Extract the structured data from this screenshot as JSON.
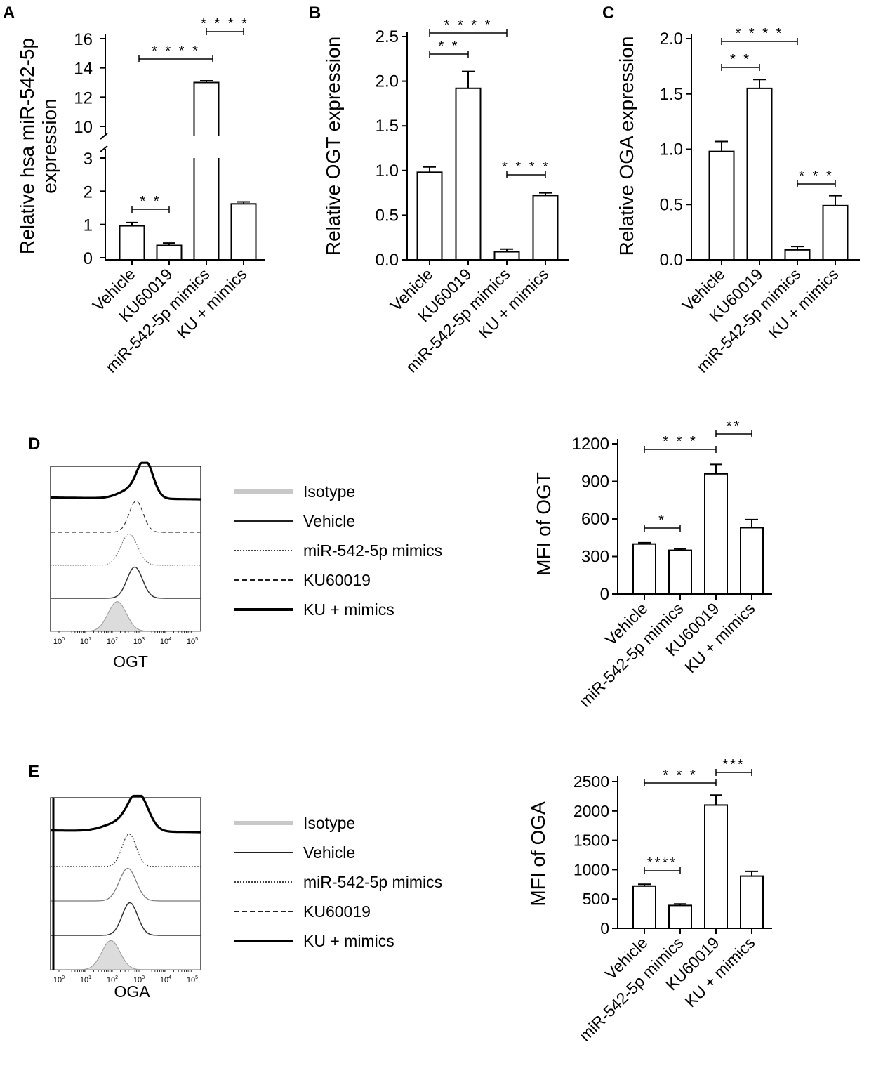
{
  "panels": [
    {
      "id": "A",
      "chart_data": {
        "type": "bar",
        "ylabel_lines": [
          "Relative hsa miR-542-5p",
          "expression"
        ],
        "categories": [
          "Vehicle",
          "KU60019",
          "miR-542-5p mimics",
          "KU + mimics"
        ],
        "values": [
          0.96,
          0.37,
          13.0,
          1.62
        ],
        "errors": [
          0.1,
          0.07,
          0.12,
          0.06
        ],
        "y_axis": "broken",
        "lower_range": [
          0,
          3
        ],
        "upper_range": [
          9,
          16
        ],
        "lower_ticks": [
          "0",
          "1",
          "2",
          "3"
        ],
        "upper_ticks": [
          "10",
          "12",
          "14",
          "16"
        ],
        "significance": [
          {
            "from": 0,
            "to": 1,
            "label": "* *"
          },
          {
            "from": 0,
            "to": 2,
            "label": "* * * *"
          },
          {
            "from": 2,
            "to": 3,
            "label": "* * * *"
          }
        ]
      }
    },
    {
      "id": "B",
      "chart_data": {
        "type": "bar",
        "ylabel": "Relative OGT expression",
        "categories": [
          "Vehicle",
          "KU60019",
          "miR-542-5p mimics",
          "KU + mimics"
        ],
        "values": [
          0.98,
          1.92,
          0.09,
          0.72
        ],
        "errors": [
          0.06,
          0.19,
          0.03,
          0.03
        ],
        "ylim": [
          0,
          2.5
        ],
        "yticks": [
          "0.0",
          "0.5",
          "1.0",
          "1.5",
          "2.0",
          "2.5"
        ],
        "significance": [
          {
            "from": 0,
            "to": 1,
            "label": "* *"
          },
          {
            "from": 0,
            "to": 2,
            "label": "* * * *"
          },
          {
            "from": 2,
            "to": 3,
            "label": "* * * *"
          }
        ]
      }
    },
    {
      "id": "C",
      "chart_data": {
        "type": "bar",
        "ylabel": "Relative OGA expression",
        "categories": [
          "Vehicle",
          "KU60019",
          "miR-542-5p mimics",
          "KU + mimics"
        ],
        "values": [
          0.98,
          1.55,
          0.09,
          0.49
        ],
        "errors": [
          0.09,
          0.08,
          0.03,
          0.09
        ],
        "ylim": [
          0,
          2.0
        ],
        "yticks": [
          "0.0",
          "0.5",
          "1.0",
          "1.5",
          "2.0"
        ],
        "significance": [
          {
            "from": 0,
            "to": 1,
            "label": "* *"
          },
          {
            "from": 0,
            "to": 2,
            "label": "* * * *"
          },
          {
            "from": 2,
            "to": 3,
            "label": "* * *"
          }
        ]
      }
    },
    {
      "id": "D",
      "histogram_xlabel": "OGT",
      "histogram_ticks": [
        "10",
        "10",
        "10",
        "10",
        "10",
        "10"
      ],
      "histogram_tick_exponents": [
        "0",
        "1",
        "2",
        "3",
        "4",
        "5"
      ],
      "legend": [
        "Isotype",
        "Vehicle",
        "miR-542-5p mimics",
        "KU60019",
        "KU + mimics"
      ],
      "chart_data": {
        "type": "bar",
        "ylabel": "MFI of OGT",
        "categories": [
          "Vehicle",
          "miR-542-5p mimics",
          "KU60019",
          "KU + mimics"
        ],
        "values": [
          400,
          350,
          960,
          530
        ],
        "errors": [
          10,
          12,
          75,
          65
        ],
        "ylim": [
          0,
          1200
        ],
        "yticks": [
          "0",
          "300",
          "600",
          "900",
          "1200"
        ],
        "significance": [
          {
            "from": 0,
            "to": 1,
            "label": "*"
          },
          {
            "from": 0,
            "to": 2,
            "label": "* * *"
          },
          {
            "from": 2,
            "to": 3,
            "label": "**"
          }
        ]
      }
    },
    {
      "id": "E",
      "histogram_xlabel": "OGA",
      "histogram_ticks": [
        "10",
        "10",
        "10",
        "10",
        "10",
        "10"
      ],
      "histogram_tick_exponents": [
        "0",
        "1",
        "2",
        "3",
        "4",
        "5"
      ],
      "legend": [
        "Isotype",
        "Vehicle",
        "miR-542-5p mimics",
        "KU60019",
        "KU + mimics"
      ],
      "chart_data": {
        "type": "bar",
        "ylabel": "MFI of OGA",
        "categories": [
          "Vehicle",
          "miR-542-5p mimics",
          "KU60019",
          "KU + mimics"
        ],
        "values": [
          720,
          390,
          2100,
          890
        ],
        "errors": [
          30,
          25,
          170,
          80
        ],
        "ylim": [
          0,
          2500
        ],
        "yticks": [
          "0",
          "500",
          "1000",
          "1500",
          "2000",
          "2500"
        ],
        "significance": [
          {
            "from": 0,
            "to": 1,
            "label": "****"
          },
          {
            "from": 0,
            "to": 2,
            "label": "* * *"
          },
          {
            "from": 2,
            "to": 3,
            "label": "***"
          }
        ]
      }
    }
  ]
}
